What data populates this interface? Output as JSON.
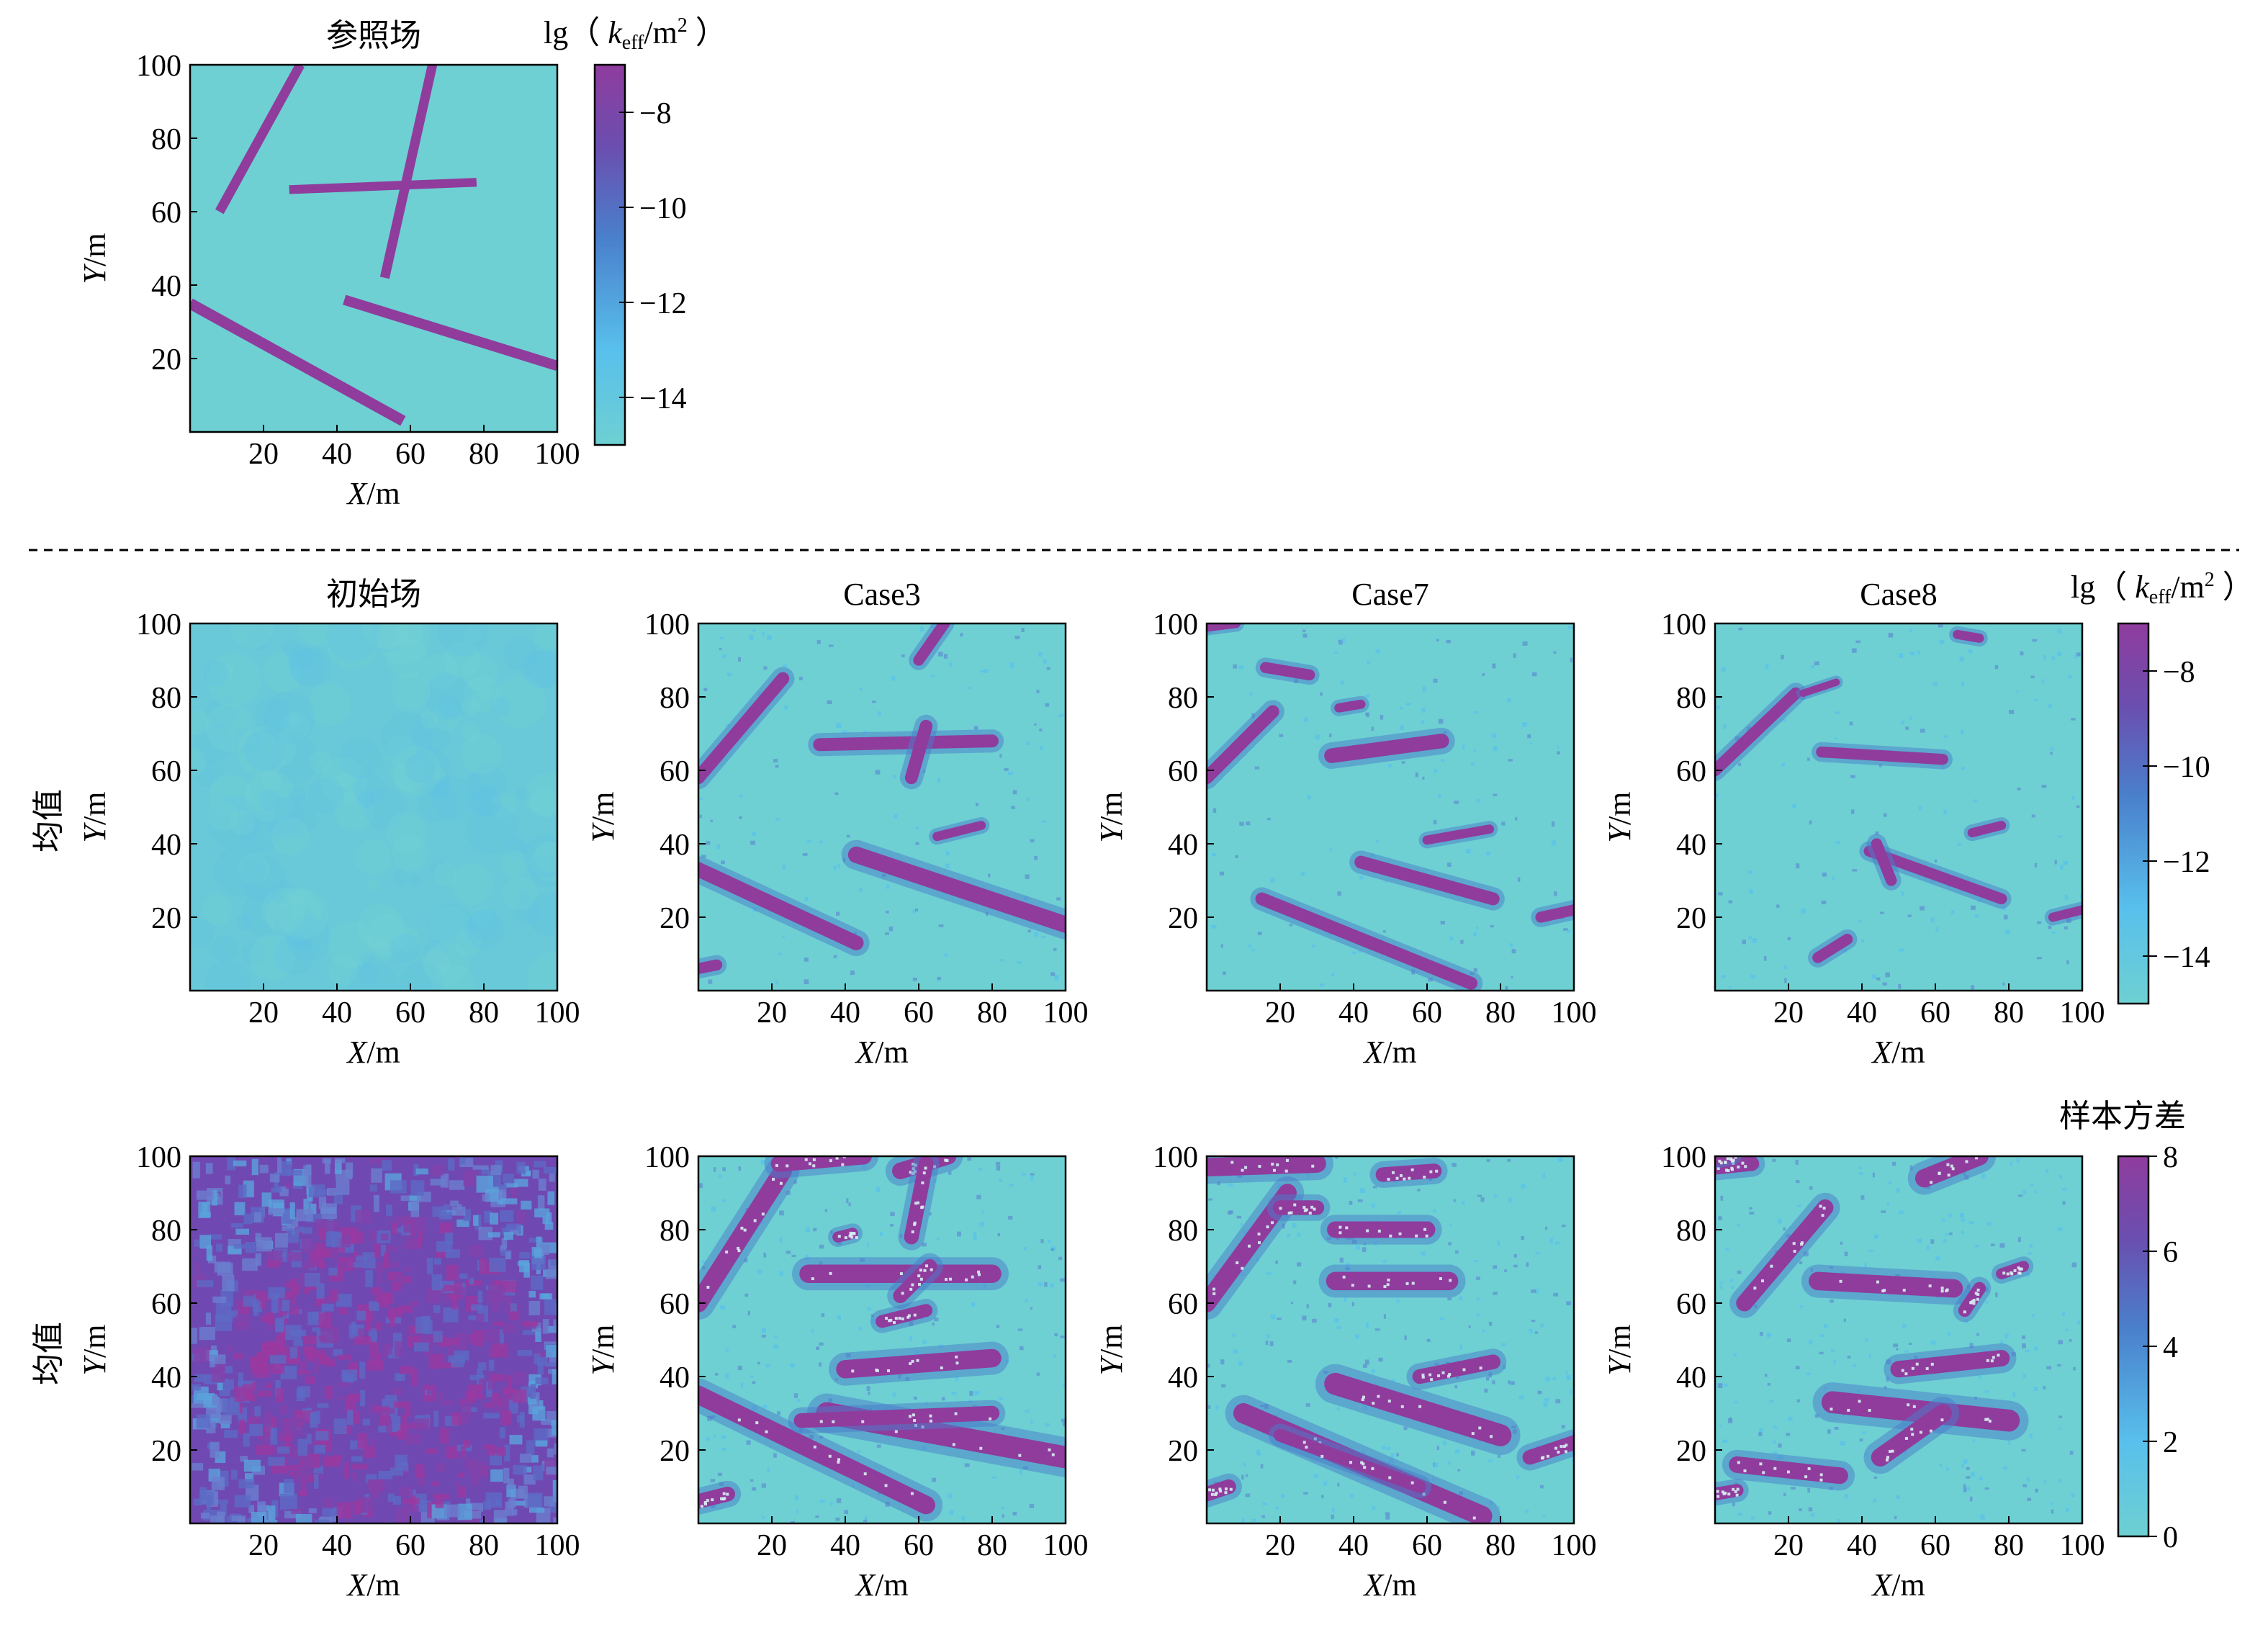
{
  "colors": {
    "low": "#6ed0d2",
    "high": "#8f3c9d",
    "mid": "#4a7fcb",
    "light_blue": "#58c0ec"
  },
  "chart_data": [
    {
      "type": "heatmap",
      "title": "参照场",
      "xlabel": "X/m",
      "ylabel": "Y/m",
      "xlim": [
        0,
        100
      ],
      "ylim": [
        0,
        100
      ],
      "xticks": [
        "20",
        "40",
        "60",
        "80",
        "100"
      ],
      "yticks": [
        "20",
        "40",
        "60",
        "80",
        "100"
      ],
      "field": "reference",
      "features": [
        {
          "from": [
            8,
            60
          ],
          "to": [
            30,
            100
          ],
          "w": 2.6
        },
        {
          "from": [
            53,
            42
          ],
          "to": [
            66,
            100
          ],
          "w": 2.6
        },
        {
          "from": [
            27,
            66
          ],
          "to": [
            78,
            68
          ],
          "w": 2.4
        },
        {
          "from": [
            0,
            35
          ],
          "to": [
            58,
            3
          ],
          "w": 3.0
        },
        {
          "from": [
            42,
            36
          ],
          "to": [
            100,
            18
          ],
          "w": 2.8
        }
      ]
    },
    {
      "type": "heatmap",
      "title": "初始场",
      "xlabel": "X/m",
      "ylabel": "Y/m",
      "xlim": [
        0,
        100
      ],
      "ylim": [
        0,
        100
      ],
      "xticks": [
        "20",
        "40",
        "60",
        "80",
        "100"
      ],
      "yticks": [
        "20",
        "40",
        "60",
        "80",
        "100"
      ],
      "field": "mean-initial",
      "features": []
    },
    {
      "type": "heatmap",
      "title": "Case3",
      "xlabel": "X/m",
      "ylabel": "Y/m",
      "xlim": [
        0,
        100
      ],
      "ylim": [
        0,
        100
      ],
      "xticks": [
        "20",
        "40",
        "60",
        "80",
        "100"
      ],
      "yticks": [
        "20",
        "40",
        "60",
        "80",
        "100"
      ],
      "field": "mean",
      "features": [
        {
          "from": [
            0,
            58
          ],
          "to": [
            23,
            85
          ],
          "w": 3.5
        },
        {
          "from": [
            60,
            90
          ],
          "to": [
            67,
            100
          ],
          "w": 3.0
        },
        {
          "from": [
            33,
            67
          ],
          "to": [
            80,
            68
          ],
          "w": 3.5
        },
        {
          "from": [
            58,
            58
          ],
          "to": [
            62,
            72
          ],
          "w": 3.5
        },
        {
          "from": [
            65,
            42
          ],
          "to": [
            77,
            45
          ],
          "w": 2.5
        },
        {
          "from": [
            0,
            33
          ],
          "to": [
            43,
            13
          ],
          "w": 4.0
        },
        {
          "from": [
            43,
            37
          ],
          "to": [
            100,
            18
          ],
          "w": 4.5
        },
        {
          "from": [
            0,
            6
          ],
          "to": [
            5,
            7
          ],
          "w": 3.0
        }
      ]
    },
    {
      "type": "heatmap",
      "title": "Case7",
      "xlabel": "X/m",
      "ylabel": "Y/m",
      "xlim": [
        0,
        100
      ],
      "ylim": [
        0,
        100
      ],
      "xticks": [
        "20",
        "40",
        "60",
        "80",
        "100"
      ],
      "yticks": [
        "20",
        "40",
        "60",
        "80",
        "100"
      ],
      "field": "mean",
      "features": [
        {
          "from": [
            0,
            58
          ],
          "to": [
            18,
            76
          ],
          "w": 3.5
        },
        {
          "from": [
            16,
            88
          ],
          "to": [
            28,
            86
          ],
          "w": 3.0
        },
        {
          "from": [
            0,
            99
          ],
          "to": [
            8,
            100
          ],
          "w": 2.5
        },
        {
          "from": [
            36,
            77
          ],
          "to": [
            42,
            78
          ],
          "w": 2.5
        },
        {
          "from": [
            34,
            64
          ],
          "to": [
            64,
            68
          ],
          "w": 4.0
        },
        {
          "from": [
            60,
            41
          ],
          "to": [
            77,
            44
          ],
          "w": 2.5
        },
        {
          "from": [
            42,
            35
          ],
          "to": [
            78,
            25
          ],
          "w": 3.5
        },
        {
          "from": [
            15,
            25
          ],
          "to": [
            72,
            2
          ],
          "w": 3.5
        },
        {
          "from": [
            91,
            20
          ],
          "to": [
            100,
            22
          ],
          "w": 3.0
        }
      ]
    },
    {
      "type": "heatmap",
      "title": "Case8",
      "xlabel": "X/m",
      "ylabel": "Y/m",
      "xlim": [
        0,
        100
      ],
      "ylim": [
        0,
        100
      ],
      "xticks": [
        "20",
        "40",
        "60",
        "80",
        "100"
      ],
      "yticks": [
        "20",
        "40",
        "60",
        "80",
        "100"
      ],
      "field": "mean",
      "features": [
        {
          "from": [
            0,
            60
          ],
          "to": [
            22,
            81
          ],
          "w": 3.2
        },
        {
          "from": [
            24,
            81
          ],
          "to": [
            33,
            84
          ],
          "w": 2.0
        },
        {
          "from": [
            29,
            65
          ],
          "to": [
            62,
            63
          ],
          "w": 3.0
        },
        {
          "from": [
            70,
            43
          ],
          "to": [
            78,
            45
          ],
          "w": 2.5
        },
        {
          "from": [
            42,
            38
          ],
          "to": [
            78,
            25
          ],
          "w": 3.0
        },
        {
          "from": [
            44,
            40
          ],
          "to": [
            48,
            30
          ],
          "w": 3.0
        },
        {
          "from": [
            28,
            9
          ],
          "to": [
            36,
            14
          ],
          "w": 3.0
        },
        {
          "from": [
            66,
            97
          ],
          "to": [
            72,
            96
          ],
          "w": 2.5
        },
        {
          "from": [
            92,
            20
          ],
          "to": [
            100,
            22
          ],
          "w": 2.5
        }
      ]
    },
    {
      "type": "heatmap",
      "title": "",
      "xlabel": "X/m",
      "ylabel": "Y/m",
      "xlim": [
        0,
        100
      ],
      "ylim": [
        0,
        100
      ],
      "xticks": [
        "20",
        "40",
        "60",
        "80",
        "100"
      ],
      "yticks": [
        "20",
        "40",
        "60",
        "80",
        "100"
      ],
      "field": "variance-initial",
      "features": []
    },
    {
      "type": "heatmap",
      "title": "",
      "xlabel": "X/m",
      "ylabel": "Y/m",
      "xlim": [
        0,
        100
      ],
      "ylim": [
        0,
        100
      ],
      "xticks": [
        "20",
        "40",
        "60",
        "80",
        "100"
      ],
      "yticks": [
        "20",
        "40",
        "60",
        "80",
        "100"
      ],
      "field": "variance",
      "features": [
        {
          "from": [
            0,
            60
          ],
          "to": [
            23,
            96
          ],
          "w": 5.0
        },
        {
          "from": [
            22,
            98
          ],
          "to": [
            45,
            100
          ],
          "w": 4.5
        },
        {
          "from": [
            55,
            96
          ],
          "to": [
            68,
            100
          ],
          "w": 4.5
        },
        {
          "from": [
            58,
            78
          ],
          "to": [
            62,
            98
          ],
          "w": 4.0
        },
        {
          "from": [
            30,
            68
          ],
          "to": [
            80,
            68
          ],
          "w": 5.0
        },
        {
          "from": [
            50,
            55
          ],
          "to": [
            62,
            58
          ],
          "w": 3.5
        },
        {
          "from": [
            55,
            62
          ],
          "to": [
            63,
            70
          ],
          "w": 4.0
        },
        {
          "from": [
            38,
            78
          ],
          "to": [
            42,
            79
          ],
          "w": 3.0
        },
        {
          "from": [
            40,
            42
          ],
          "to": [
            80,
            45
          ],
          "w": 5.0
        },
        {
          "from": [
            0,
            35
          ],
          "to": [
            62,
            5
          ],
          "w": 5.0
        },
        {
          "from": [
            35,
            30
          ],
          "to": [
            100,
            18
          ],
          "w": 6.0
        },
        {
          "from": [
            28,
            28
          ],
          "to": [
            80,
            30
          ],
          "w": 4.0
        },
        {
          "from": [
            0,
            6
          ],
          "to": [
            8,
            8
          ],
          "w": 4.0
        }
      ]
    },
    {
      "type": "heatmap",
      "title": "",
      "xlabel": "X/m",
      "ylabel": "Y/m",
      "xlim": [
        0,
        100
      ],
      "ylim": [
        0,
        100
      ],
      "xticks": [
        "20",
        "40",
        "60",
        "80",
        "100"
      ],
      "yticks": [
        "20",
        "40",
        "60",
        "80",
        "100"
      ],
      "field": "variance",
      "features": [
        {
          "from": [
            0,
            60
          ],
          "to": [
            22,
            90
          ],
          "w": 5.0
        },
        {
          "from": [
            0,
            97
          ],
          "to": [
            30,
            98
          ],
          "w": 5.0
        },
        {
          "from": [
            48,
            95
          ],
          "to": [
            62,
            96
          ],
          "w": 4.0
        },
        {
          "from": [
            20,
            86
          ],
          "to": [
            30,
            86
          ],
          "w": 4.0
        },
        {
          "from": [
            35,
            80
          ],
          "to": [
            60,
            80
          ],
          "w": 4.5
        },
        {
          "from": [
            35,
            66
          ],
          "to": [
            66,
            66
          ],
          "w": 5.0
        },
        {
          "from": [
            58,
            40
          ],
          "to": [
            78,
            44
          ],
          "w": 4.0
        },
        {
          "from": [
            35,
            38
          ],
          "to": [
            80,
            24
          ],
          "w": 6.0
        },
        {
          "from": [
            10,
            30
          ],
          "to": [
            75,
            2
          ],
          "w": 5.5
        },
        {
          "from": [
            20,
            24
          ],
          "to": [
            58,
            10
          ],
          "w": 3.5
        },
        {
          "from": [
            88,
            18
          ],
          "to": [
            100,
            22
          ],
          "w": 4.0
        },
        {
          "from": [
            0,
            8
          ],
          "to": [
            6,
            10
          ],
          "w": 4.0
        }
      ]
    },
    {
      "type": "heatmap",
      "title": "",
      "xlabel": "X/m",
      "ylabel": "Y/m",
      "xlim": [
        0,
        100
      ],
      "ylim": [
        0,
        100
      ],
      "xticks": [
        "20",
        "40",
        "60",
        "80",
        "100"
      ],
      "yticks": [
        "20",
        "40",
        "60",
        "80",
        "100"
      ],
      "field": "variance",
      "features": [
        {
          "from": [
            8,
            60
          ],
          "to": [
            30,
            86
          ],
          "w": 4.5
        },
        {
          "from": [
            0,
            97
          ],
          "to": [
            10,
            98
          ],
          "w": 4.0
        },
        {
          "from": [
            57,
            94
          ],
          "to": [
            72,
            100
          ],
          "w": 5.0
        },
        {
          "from": [
            28,
            66
          ],
          "to": [
            65,
            64
          ],
          "w": 5.0
        },
        {
          "from": [
            68,
            58
          ],
          "to": [
            72,
            64
          ],
          "w": 3.5
        },
        {
          "from": [
            78,
            68
          ],
          "to": [
            84,
            70
          ],
          "w": 3.0
        },
        {
          "from": [
            50,
            42
          ],
          "to": [
            78,
            45
          ],
          "w": 4.5
        },
        {
          "from": [
            32,
            33
          ],
          "to": [
            80,
            28
          ],
          "w": 6.0
        },
        {
          "from": [
            45,
            18
          ],
          "to": [
            62,
            30
          ],
          "w": 5.0
        },
        {
          "from": [
            6,
            16
          ],
          "to": [
            34,
            13
          ],
          "w": 4.5
        },
        {
          "from": [
            0,
            8
          ],
          "to": [
            6,
            9
          ],
          "w": 3.5
        },
        {
          "from": [
            1,
            99
          ],
          "to": [
            5,
            100
          ],
          "w": 2.5
        }
      ]
    }
  ],
  "row_labels": {
    "mean": "均值",
    "variance": "均值"
  },
  "colorbars": [
    {
      "title": "lg（ keff/m² ）",
      "title_parts": [
        "lg（ ",
        "k",
        "eff",
        "/m",
        "2",
        " ）"
      ],
      "range": [
        -15,
        -7
      ],
      "ticks": [
        "−8",
        "−10",
        "−12",
        "−14"
      ],
      "tick_values": [
        -8,
        -10,
        -12,
        -14
      ]
    },
    {
      "title": "lg（ keff/m² ）",
      "title_parts": [
        "lg（ ",
        "k",
        "eff",
        "/m",
        "2",
        " ）"
      ],
      "range": [
        -15,
        -7
      ],
      "ticks": [
        "−8",
        "−10",
        "−12",
        "−14"
      ],
      "tick_values": [
        -8,
        -10,
        -12,
        -14
      ]
    },
    {
      "title": "样本方差",
      "range": [
        0,
        8
      ],
      "ticks": [
        "8",
        "6",
        "4",
        "2",
        "0"
      ],
      "tick_values": [
        8,
        6,
        4,
        2,
        0
      ]
    }
  ]
}
